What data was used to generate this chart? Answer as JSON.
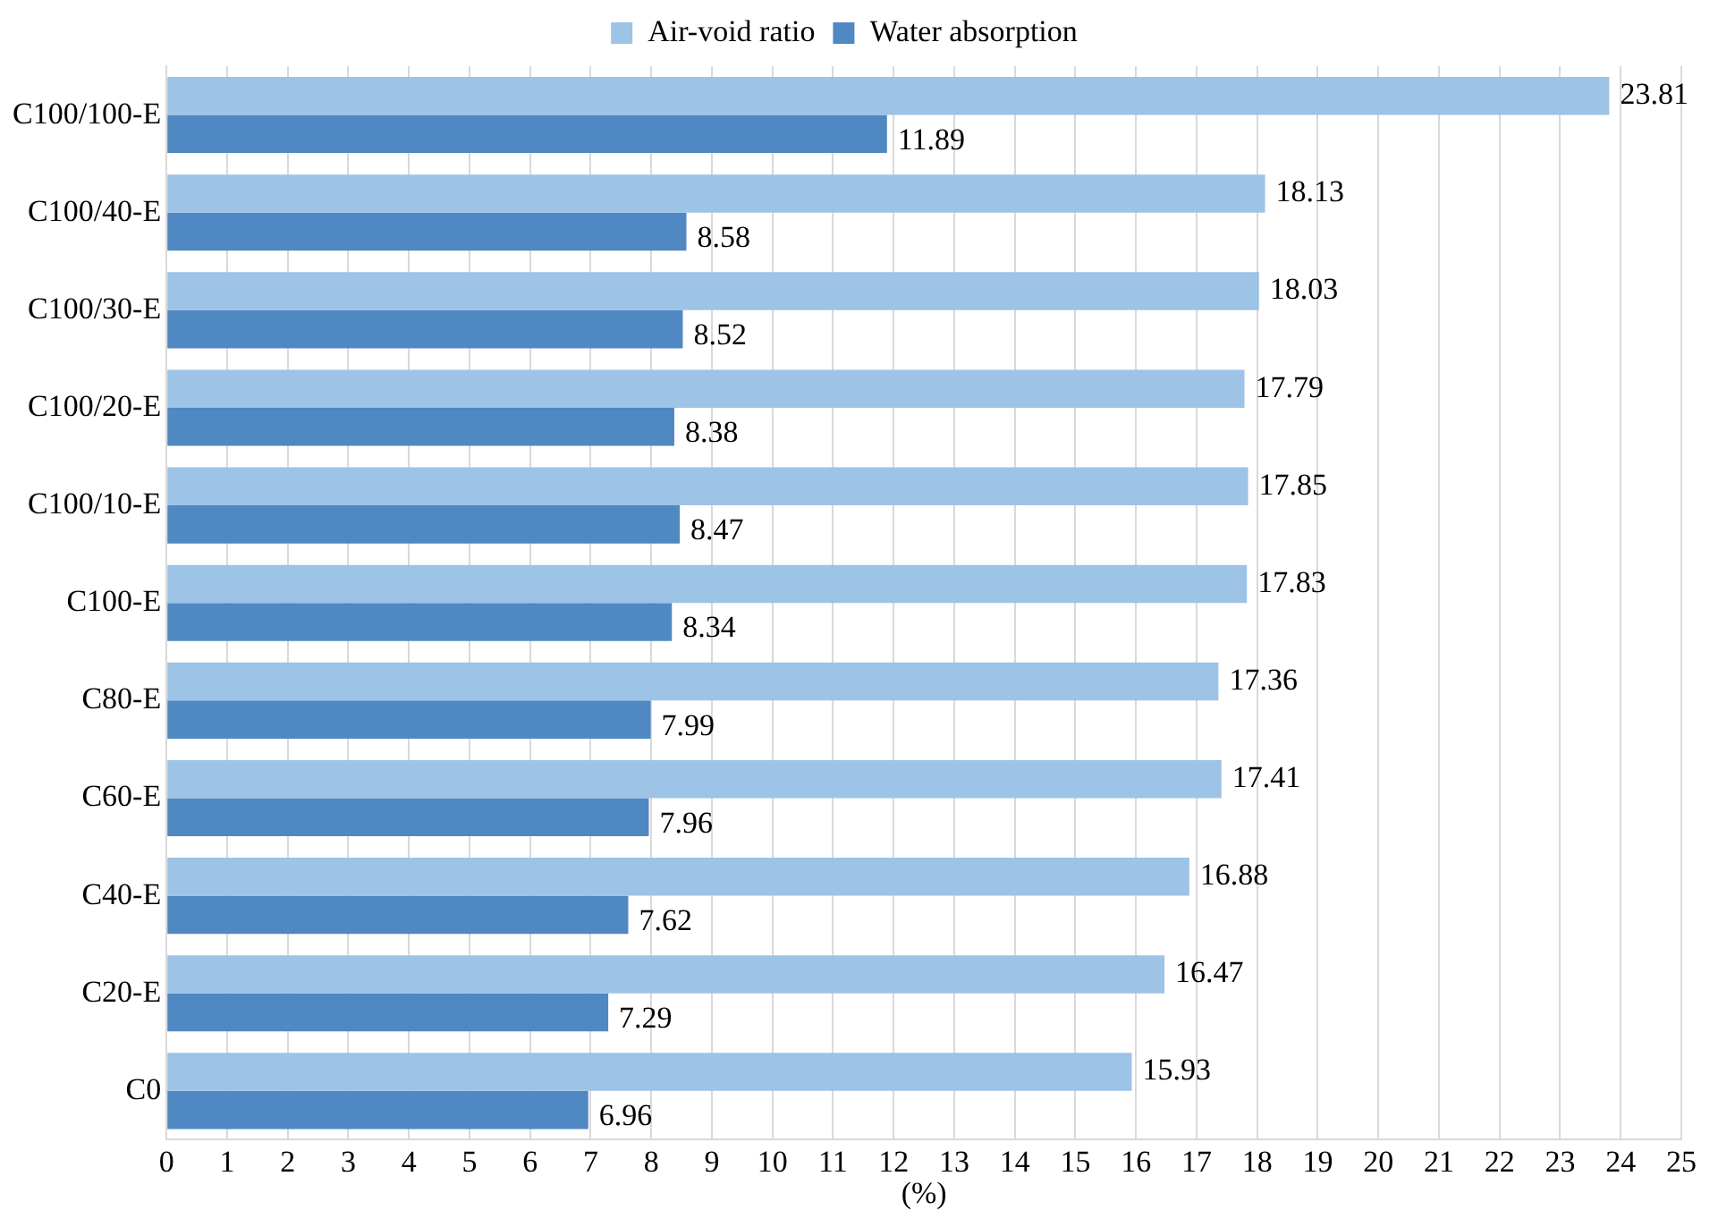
{
  "chart_data": {
    "type": "bar",
    "orientation": "horizontal",
    "xlabel": "(%)",
    "categories": [
      "C100/100-E",
      "C100/40-E",
      "C100/30-E",
      "C100/20-E",
      "C100/10-E",
      "C100-E",
      "C80-E",
      "C60-E",
      "C40-E",
      "C20-E",
      "C0"
    ],
    "series": [
      {
        "name": "Air-void ratio",
        "color": "#9dc3e6",
        "values": [
          23.81,
          18.13,
          18.03,
          17.79,
          17.85,
          17.83,
          17.36,
          17.41,
          16.88,
          16.47,
          15.93
        ]
      },
      {
        "name": "Water absorption",
        "color": "#4f88c2",
        "values": [
          11.89,
          8.58,
          8.52,
          8.38,
          8.47,
          8.34,
          7.99,
          7.96,
          7.62,
          7.29,
          6.96
        ]
      }
    ],
    "xlim": [
      0,
      25
    ],
    "xticks": [
      0,
      1,
      2,
      3,
      4,
      5,
      6,
      7,
      8,
      9,
      10,
      11,
      12,
      13,
      14,
      15,
      16,
      17,
      18,
      19,
      20,
      21,
      22,
      23,
      24,
      25
    ],
    "grid": "x",
    "legend": "top",
    "data_labels": true
  }
}
